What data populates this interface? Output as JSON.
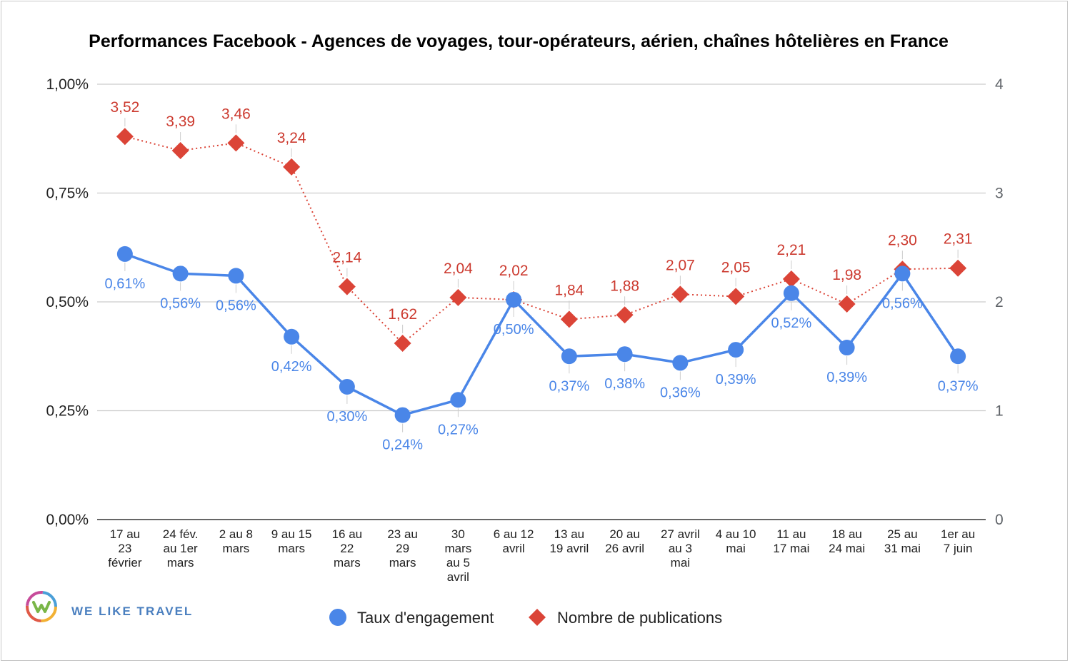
{
  "chart_data": {
    "type": "line",
    "title": "Performances Facebook - Agences de voyages, tour-opérateurs, aérien, chaînes hôtelières en France",
    "categories": [
      [
        "17 au",
        "23",
        "février"
      ],
      [
        "24 fév.",
        "au 1er",
        "mars"
      ],
      [
        "2 au 8",
        "mars"
      ],
      [
        "9 au 15",
        "mars"
      ],
      [
        "16 au",
        "22",
        "mars"
      ],
      [
        "23 au",
        "29",
        "mars"
      ],
      [
        "30",
        "mars",
        "au 5",
        "avril"
      ],
      [
        "6 au 12",
        "avril"
      ],
      [
        "13 au",
        "19 avril"
      ],
      [
        "20 au",
        "26 avril"
      ],
      [
        "27 avril",
        "au 3",
        "mai"
      ],
      [
        "4 au 10",
        "mai"
      ],
      [
        "11 au",
        "17 mai"
      ],
      [
        "18 au",
        "24 mai"
      ],
      [
        "25 au",
        "31 mai"
      ],
      [
        "1er au",
        "7 juin"
      ]
    ],
    "left_axis": {
      "ylim": [
        0,
        1.0
      ],
      "ticks": [
        "0,00%",
        "0,25%",
        "0,50%",
        "0,75%",
        "1,00%"
      ]
    },
    "right_axis": {
      "ylim": [
        0,
        4
      ],
      "ticks": [
        "0",
        "1",
        "2",
        "3",
        "4"
      ]
    },
    "grid": true,
    "legend_position": "bottom",
    "series": [
      {
        "name": "Taux d'engagement",
        "axis": "left",
        "color": "#4a86e8",
        "marker": "circle",
        "values": [
          0.61,
          0.565,
          0.56,
          0.42,
          0.305,
          0.24,
          0.275,
          0.505,
          0.375,
          0.38,
          0.36,
          0.39,
          0.52,
          0.395,
          0.565,
          0.375
        ],
        "labels": [
          "0,61%",
          "0,56%",
          "0,56%",
          "0,42%",
          "0,30%",
          "0,24%",
          "0,27%",
          "0,50%",
          "0,37%",
          "0,38%",
          "0,36%",
          "0,39%",
          "0,52%",
          "0,39%",
          "0,56%",
          "0,37%"
        ]
      },
      {
        "name": "Nombre de publications",
        "axis": "right",
        "color": "#db4437",
        "marker": "diamond",
        "values": [
          3.52,
          3.39,
          3.46,
          3.24,
          2.14,
          1.62,
          2.04,
          2.02,
          1.84,
          1.88,
          2.07,
          2.05,
          2.21,
          1.98,
          2.3,
          2.31
        ],
        "labels": [
          "3,52",
          "3,39",
          "3,46",
          "3,24",
          "2,14",
          "1,62",
          "2,04",
          "2,02",
          "1,84",
          "1,88",
          "2,07",
          "2,05",
          "2,21",
          "1,98",
          "2,30",
          "2,31"
        ]
      }
    ]
  },
  "logo": {
    "text": "WE LIKE TRAVEL"
  }
}
